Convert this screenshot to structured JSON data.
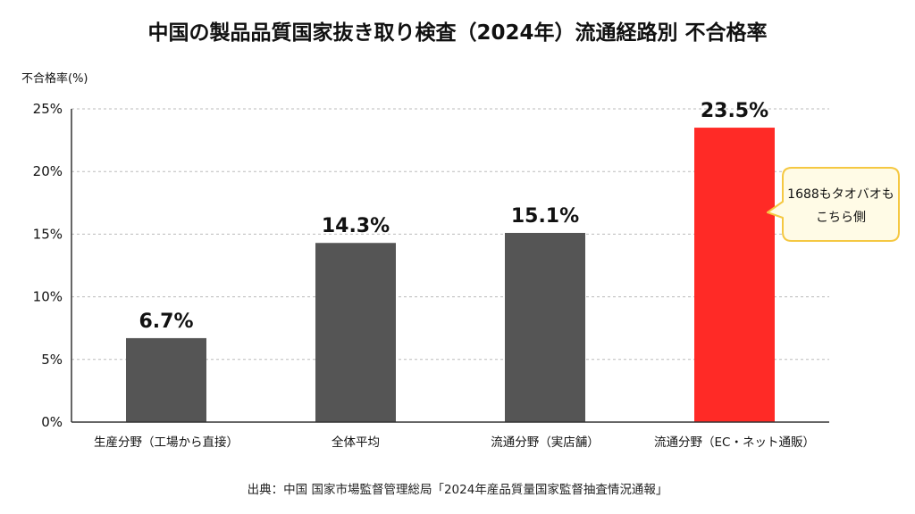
{
  "chart_data": {
    "type": "bar",
    "title": "中国の製品品質国家抜き取り検査（2024年）流通経路別 不合格率",
    "ylabel": "不合格率(%)",
    "ylim": [
      0,
      25
    ],
    "yticks": [
      0,
      5,
      10,
      15,
      20,
      25
    ],
    "ytick_suffix": "%",
    "categories": [
      "生産分野（工場から直接）",
      "全体平均",
      "流通分野（実店舗）",
      "流通分野（EC・ネット通販）"
    ],
    "values": [
      6.7,
      14.3,
      15.1,
      23.5
    ],
    "data_labels": [
      "6.7%",
      "14.3%",
      "15.1%",
      "23.5%"
    ],
    "bar_colors": [
      "#555555",
      "#555555",
      "#555555",
      "#ff2a26"
    ],
    "grid": true,
    "legend": "none",
    "annotation": {
      "lines": [
        "1688もタオバオも",
        "こちら側"
      ],
      "target_category_index": 3,
      "border_color": "#f5c842",
      "fill_color": "#fffbe6"
    },
    "source": "出典：中国 国家市場監督管理総局「2024年産品質量国家監督抽査情況通報」"
  }
}
